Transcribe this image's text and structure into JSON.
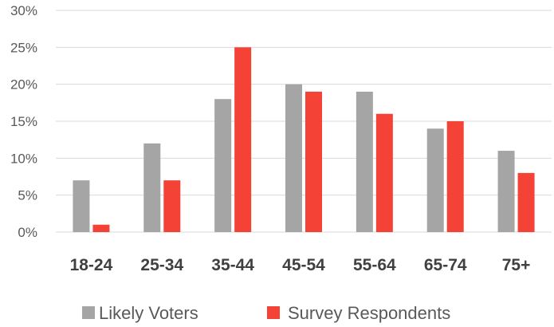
{
  "chart_data": {
    "type": "bar",
    "categories": [
      "18-24",
      "25-34",
      "35-44",
      "45-54",
      "55-64",
      "65-74",
      "75+"
    ],
    "series": [
      {
        "name": "Likely Voters",
        "values": [
          7,
          12,
          18,
          20,
          19,
          14,
          11
        ],
        "color": "#a5a5a5"
      },
      {
        "name": "Survey Respondents",
        "values": [
          1,
          7,
          25,
          19,
          16,
          15,
          8
        ],
        "color": "#f44336"
      }
    ],
    "yticks": [
      "0%",
      "5%",
      "10%",
      "15%",
      "20%",
      "25%",
      "30%"
    ],
    "ylim": [
      0,
      30
    ],
    "grid": true,
    "legend_position": "bottom"
  }
}
